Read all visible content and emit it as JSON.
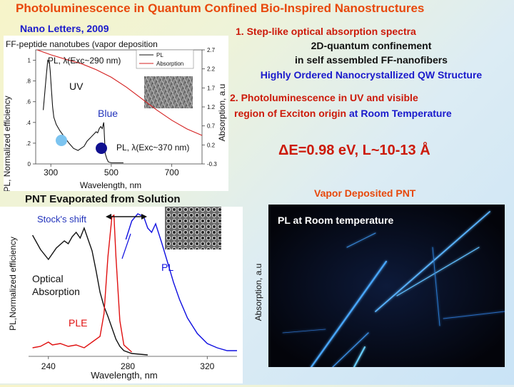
{
  "title": "Photoluminescence in Quantum Confined Bio-Inspired Nanostructures",
  "citation": "Nano Letters, 2009",
  "right_text": {
    "item1": "1.  Step-like optical absorption spectra",
    "line2": "2D-quantum confinement",
    "line3": "in self assembled FF-nanofibers",
    "line4": "Highly Ordered Nanocrystallized QW Structure",
    "item2_a": "2. Photoluminescence in UV and visible",
    "item2_b_red": "region of Exciton origin",
    "item2_b_blue": "at Room Temperature",
    "equation": "ΔE=0.98 eV, L~10-13 Å"
  },
  "chart_top": {
    "caption": "FF-peptide nanotubes (vapor deposition",
    "ylabel_left": "PL, Normalized efficiency",
    "ylabel_right": "Absorption, a.u",
    "xlabel": "Wavelength, nm",
    "legend": [
      "PL",
      "Absorption"
    ],
    "annot_pl_uv": "PL, λ(Exc~290 nm)",
    "annot_uv": "UV",
    "annot_blue": "Blue",
    "annot_pl_blue": "PL, λ(Exc~370 nm)",
    "colors": {
      "pl": "#111111",
      "absorption": "#d42020",
      "uv_dot": "#7cc4f0",
      "blue_dot": "#101090"
    }
  },
  "chart_bottom": {
    "caption": "PNT Evaporated from Solution",
    "ylabel_left": "PL,Normalized efficiency",
    "ylabel_right": "Absorption, a.u",
    "xlabel": "Wavelength, nm",
    "annot_stokes": "Stock's shift",
    "annot_optical_1": "Optical",
    "annot_optical_2": "Absorption",
    "annot_ple": "PLE",
    "annot_pl": "PL",
    "colors": {
      "absorption": "#111111",
      "ple": "#e01010",
      "pl": "#1010e0"
    }
  },
  "photo": {
    "heading": "Vapor Deposited PNT",
    "label": "PL at Room temperature"
  },
  "chart_data": [
    {
      "type": "line",
      "title": "FF-peptide nanotubes (vapor deposition",
      "xlabel": "Wavelength, nm",
      "ylabel": "PL, Normalized efficiency",
      "y2label": "Absorption, a.u",
      "xlim": [
        250,
        800
      ],
      "ylim": [
        0,
        1.1
      ],
      "y2lim": [
        -0.3,
        2.7
      ],
      "xticks": [
        300,
        500,
        700
      ],
      "yticks": [
        0,
        0.2,
        0.4,
        0.6,
        0.8,
        1
      ],
      "ytick_labels": [
        "0",
        ".2",
        ".4",
        ".6",
        ".8",
        "1"
      ],
      "y2ticks": [
        -0.3,
        0.2,
        0.7,
        1.2,
        1.7,
        2.2,
        2.7
      ],
      "legend": "top-right",
      "series": [
        {
          "name": "PL",
          "axis": "left",
          "x": [
            275,
            285,
            290,
            295,
            298,
            302,
            306,
            310,
            318,
            330,
            345,
            360,
            375,
            390,
            400,
            410,
            420,
            430,
            440,
            450,
            455,
            460,
            465,
            470,
            475,
            478,
            480,
            485,
            490,
            500,
            510,
            520,
            530,
            540
          ],
          "y": [
            0.52,
            0.85,
            1.0,
            0.98,
            0.9,
            0.72,
            0.55,
            0.45,
            0.38,
            0.32,
            0.26,
            0.2,
            0.15,
            0.13,
            0.15,
            0.17,
            0.22,
            0.25,
            0.28,
            0.31,
            0.3,
            0.34,
            0.36,
            0.34,
            0.4,
            0.22,
            0.1,
            0.05,
            0.02,
            0.01,
            0.01,
            0.01,
            0.01,
            0.01
          ]
        },
        {
          "name": "Absorption",
          "axis": "right",
          "x": [
            255,
            300,
            350,
            400,
            450,
            500,
            550,
            600,
            650,
            700,
            750,
            800
          ],
          "y": [
            2.7,
            2.57,
            2.45,
            2.34,
            2.18,
            1.98,
            1.72,
            1.42,
            1.12,
            0.85,
            0.62,
            0.45
          ]
        }
      ]
    },
    {
      "type": "line",
      "title": "PNT Evaporated from Solution",
      "xlabel": "Wavelength, nm",
      "ylabel": "PL,Normalized efficiency",
      "y2label": "Absorption, a.u",
      "xlim": [
        230,
        335
      ],
      "ylim": [
        0,
        1
      ],
      "xticks": [
        240,
        280,
        320
      ],
      "series": [
        {
          "name": "Optical Absorption",
          "x": [
            232,
            236,
            240,
            244,
            248,
            250,
            252,
            254,
            256,
            258,
            260,
            262,
            264,
            266,
            268,
            270,
            272,
            274,
            276,
            278,
            282,
            290
          ],
          "y": [
            0.85,
            0.75,
            0.68,
            0.76,
            0.81,
            0.79,
            0.84,
            0.87,
            0.83,
            0.9,
            0.82,
            0.74,
            0.6,
            0.45,
            0.35,
            0.28,
            0.2,
            0.12,
            0.07,
            0.04,
            0.02,
            0.01
          ]
        },
        {
          "name": "PLE",
          "x": [
            232,
            236,
            240,
            242,
            246,
            250,
            254,
            258,
            262,
            266,
            268,
            270,
            272,
            273,
            274,
            276,
            278,
            282
          ],
          "y": [
            0.06,
            0.07,
            0.1,
            0.08,
            0.09,
            0.07,
            0.08,
            0.06,
            0.1,
            0.14,
            0.3,
            0.7,
            0.98,
            0.99,
            0.7,
            0.25,
            0.08,
            0.03
          ]
        },
        {
          "name": "PL",
          "x": [
            279,
            282,
            285,
            288,
            290,
            292,
            294,
            297,
            300,
            303,
            306,
            310,
            315,
            320,
            325,
            330,
            335
          ],
          "y": [
            0.82,
            0.95,
            1.0,
            0.98,
            0.9,
            0.87,
            0.93,
            0.8,
            0.66,
            0.52,
            0.4,
            0.27,
            0.16,
            0.09,
            0.06,
            0.04,
            0.04
          ]
        }
      ]
    }
  ]
}
